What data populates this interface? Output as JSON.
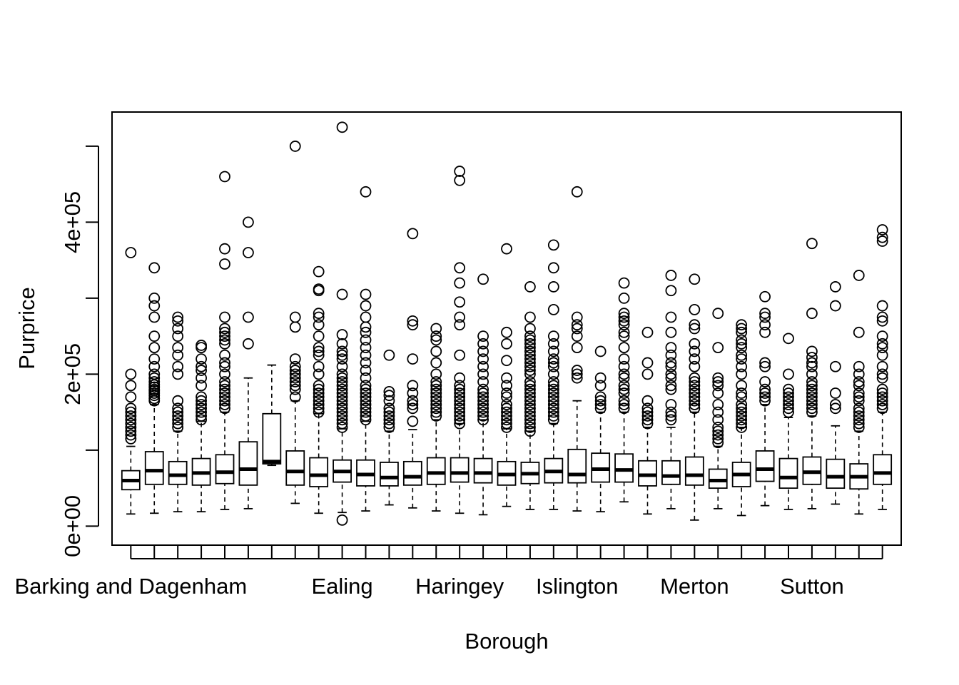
{
  "chart_data": {
    "type": "box",
    "title": "",
    "xlabel": "Borough",
    "ylabel": "Purprice",
    "ylim": [
      -25000,
      545000
    ],
    "yticks": [
      0,
      200000,
      400000
    ],
    "ytick_labels": [
      "0e+00",
      "2e+05",
      "4e+05"
    ],
    "xtick_labels_shown": {
      "1": "Barking and Dagenham",
      "10": "Ealing",
      "15": "Haringey",
      "20": "Islington",
      "25": "Merton",
      "30": "Sutton"
    },
    "boxes": [
      {
        "q1": 48000,
        "median": 60000,
        "q3": 73000,
        "lo": 16000,
        "hi": 105000,
        "out": [
          115000,
          120000,
          125000,
          130000,
          135000,
          140000,
          145000,
          150000,
          155000,
          170000,
          185000,
          200000,
          360000
        ]
      },
      {
        "q1": 55000,
        "median": 73000,
        "q3": 98000,
        "lo": 17000,
        "hi": 160000,
        "out": [
          165000,
          168000,
          172000,
          175000,
          178000,
          180000,
          183000,
          186000,
          190000,
          195000,
          200000,
          210000,
          220000,
          235000,
          250000,
          275000,
          290000,
          300000,
          340000
        ]
      },
      {
        "q1": 55000,
        "median": 67000,
        "q3": 85000,
        "lo": 19000,
        "hi": 125000,
        "out": [
          130000,
          135000,
          140000,
          145000,
          150000,
          155000,
          165000,
          200000,
          210000,
          225000,
          235000,
          250000,
          260000,
          270000,
          275000
        ]
      },
      {
        "q1": 54000,
        "median": 70000,
        "q3": 89000,
        "lo": 19000,
        "hi": 138000,
        "out": [
          140000,
          145000,
          150000,
          155000,
          160000,
          165000,
          170000,
          185000,
          195000,
          205000,
          210000,
          220000,
          235000,
          238000
        ]
      },
      {
        "q1": 56000,
        "median": 71000,
        "q3": 94000,
        "lo": 22000,
        "hi": 150000,
        "out": [
          155000,
          160000,
          165000,
          170000,
          175000,
          180000,
          185000,
          190000,
          200000,
          210000,
          215000,
          225000,
          240000,
          245000,
          250000,
          255000,
          260000,
          275000,
          345000,
          365000,
          460000
        ]
      },
      {
        "q1": 54000,
        "median": 75000,
        "q3": 111000,
        "lo": 23000,
        "hi": 195000,
        "out": [
          240000,
          275000,
          360000,
          400000
        ]
      },
      {
        "q1": 82000,
        "median": 85000,
        "q3": 148000,
        "lo": 80000,
        "hi": 212000,
        "out": []
      },
      {
        "q1": 54000,
        "median": 72000,
        "q3": 99000,
        "lo": 30000,
        "hi": 165000,
        "out": [
          170000,
          180000,
          185000,
          190000,
          195000,
          200000,
          205000,
          210000,
          220000,
          262000,
          275000,
          500000
        ]
      },
      {
        "q1": 52000,
        "median": 67000,
        "q3": 90000,
        "lo": 17000,
        "hi": 148000,
        "out": [
          150000,
          155000,
          160000,
          165000,
          170000,
          175000,
          180000,
          185000,
          200000,
          210000,
          225000,
          230000,
          235000,
          250000,
          265000,
          275000,
          280000,
          310000,
          312000,
          335000
        ]
      },
      {
        "q1": 58000,
        "median": 72000,
        "q3": 87000,
        "lo": 18000,
        "hi": 128000,
        "out": [
          8000,
          130000,
          135000,
          140000,
          145000,
          150000,
          155000,
          160000,
          165000,
          170000,
          175000,
          180000,
          185000,
          190000,
          195000,
          200000,
          210000,
          220000,
          225000,
          230000,
          240000,
          252000,
          305000,
          525000
        ]
      },
      {
        "q1": 53000,
        "median": 68000,
        "q3": 87000,
        "lo": 20000,
        "hi": 138000,
        "out": [
          140000,
          145000,
          150000,
          155000,
          160000,
          165000,
          170000,
          175000,
          180000,
          185000,
          195000,
          205000,
          215000,
          225000,
          235000,
          245000,
          255000,
          262000,
          275000,
          290000,
          305000,
          440000
        ]
      },
      {
        "q1": 53000,
        "median": 64000,
        "q3": 84000,
        "lo": 28000,
        "hi": 125000,
        "out": [
          130000,
          135000,
          140000,
          145000,
          150000,
          155000,
          165000,
          172000,
          177000,
          225000
        ]
      },
      {
        "q1": 54000,
        "median": 65000,
        "q3": 85000,
        "lo": 24000,
        "hi": 127000,
        "out": [
          138000,
          155000,
          160000,
          165000,
          175000,
          185000,
          220000,
          265000,
          270000,
          385000
        ]
      },
      {
        "q1": 55000,
        "median": 70000,
        "q3": 90000,
        "lo": 20000,
        "hi": 140000,
        "out": [
          145000,
          150000,
          155000,
          160000,
          165000,
          170000,
          175000,
          180000,
          185000,
          190000,
          200000,
          215000,
          230000,
          245000,
          250000,
          260000
        ]
      },
      {
        "q1": 58000,
        "median": 70000,
        "q3": 90000,
        "lo": 17000,
        "hi": 135000,
        "out": [
          135000,
          140000,
          145000,
          150000,
          155000,
          160000,
          165000,
          170000,
          175000,
          180000,
          185000,
          195000,
          225000,
          265000,
          275000,
          295000,
          320000,
          340000,
          455000,
          467000
        ]
      },
      {
        "q1": 57000,
        "median": 70000,
        "q3": 89000,
        "lo": 15000,
        "hi": 140000,
        "out": [
          140000,
          145000,
          150000,
          155000,
          160000,
          165000,
          170000,
          175000,
          180000,
          190000,
          200000,
          210000,
          220000,
          230000,
          240000,
          250000,
          325000
        ]
      },
      {
        "q1": 54000,
        "median": 68000,
        "q3": 85000,
        "lo": 26000,
        "hi": 128000,
        "out": [
          130000,
          135000,
          140000,
          145000,
          150000,
          155000,
          160000,
          170000,
          175000,
          185000,
          195000,
          218000,
          240000,
          255000,
          365000
        ]
      },
      {
        "q1": 56000,
        "median": 69000,
        "q3": 84000,
        "lo": 22000,
        "hi": 125000,
        "out": [
          125000,
          130000,
          135000,
          140000,
          145000,
          150000,
          155000,
          160000,
          165000,
          170000,
          175000,
          180000,
          185000,
          190000,
          200000,
          205000,
          210000,
          215000,
          220000,
          225000,
          230000,
          235000,
          240000,
          245000,
          250000,
          260000,
          275000,
          315000
        ]
      },
      {
        "q1": 57000,
        "median": 72000,
        "q3": 89000,
        "lo": 22000,
        "hi": 135000,
        "out": [
          140000,
          145000,
          150000,
          155000,
          160000,
          165000,
          170000,
          175000,
          180000,
          185000,
          190000,
          200000,
          210000,
          215000,
          220000,
          230000,
          240000,
          250000,
          285000,
          315000,
          340000,
          370000
        ]
      },
      {
        "q1": 57000,
        "median": 68000,
        "q3": 101000,
        "lo": 20000,
        "hi": 165000,
        "out": [
          195000,
          200000,
          205000,
          235000,
          250000,
          260000,
          265000,
          275000,
          440000
        ]
      },
      {
        "q1": 58000,
        "median": 75000,
        "q3": 96000,
        "lo": 19000,
        "hi": 150000,
        "out": [
          155000,
          160000,
          165000,
          170000,
          185000,
          195000,
          230000
        ]
      },
      {
        "q1": 58000,
        "median": 74000,
        "q3": 95000,
        "lo": 32000,
        "hi": 150000,
        "out": [
          155000,
          160000,
          165000,
          175000,
          180000,
          185000,
          195000,
          200000,
          210000,
          220000,
          235000,
          250000,
          255000,
          265000,
          270000,
          275000,
          280000,
          300000,
          320000
        ]
      },
      {
        "q1": 53000,
        "median": 67000,
        "q3": 86000,
        "lo": 16000,
        "hi": 130000,
        "out": [
          135000,
          140000,
          145000,
          150000,
          155000,
          165000,
          200000,
          215000,
          255000
        ]
      },
      {
        "q1": 55000,
        "median": 66000,
        "q3": 86000,
        "lo": 23000,
        "hi": 130000,
        "out": [
          140000,
          145000,
          150000,
          160000,
          180000,
          185000,
          195000,
          200000,
          210000,
          215000,
          225000,
          235000,
          255000,
          275000,
          310000,
          330000
        ]
      },
      {
        "q1": 54000,
        "median": 67000,
        "q3": 91000,
        "lo": 8000,
        "hi": 150000,
        "out": [
          155000,
          160000,
          165000,
          170000,
          175000,
          180000,
          185000,
          190000,
          195000,
          210000,
          220000,
          230000,
          240000,
          260000,
          265000,
          285000,
          325000
        ]
      },
      {
        "q1": 50000,
        "median": 60000,
        "q3": 75000,
        "lo": 23000,
        "hi": 105000,
        "out": [
          110000,
          115000,
          120000,
          125000,
          130000,
          140000,
          150000,
          160000,
          175000,
          185000,
          190000,
          195000,
          235000,
          280000
        ]
      },
      {
        "q1": 52000,
        "median": 68000,
        "q3": 84000,
        "lo": 14000,
        "hi": 130000,
        "out": [
          130000,
          135000,
          140000,
          145000,
          150000,
          155000,
          160000,
          170000,
          175000,
          185000,
          200000,
          210000,
          220000,
          225000,
          235000,
          240000,
          245000,
          255000,
          260000,
          265000
        ]
      },
      {
        "q1": 59000,
        "median": 75000,
        "q3": 99000,
        "lo": 27000,
        "hi": 160000,
        "out": [
          165000,
          170000,
          175000,
          180000,
          190000,
          210000,
          215000,
          255000,
          265000,
          275000,
          280000,
          302000
        ]
      },
      {
        "q1": 50000,
        "median": 64000,
        "q3": 89000,
        "lo": 22000,
        "hi": 143000,
        "out": [
          150000,
          155000,
          160000,
          165000,
          170000,
          175000,
          180000,
          200000,
          247000
        ]
      },
      {
        "q1": 55000,
        "median": 71000,
        "q3": 91000,
        "lo": 23000,
        "hi": 145000,
        "out": [
          150000,
          155000,
          160000,
          165000,
          170000,
          175000,
          180000,
          185000,
          190000,
          200000,
          210000,
          215000,
          222000,
          230000,
          280000,
          372000
        ]
      },
      {
        "q1": 50000,
        "median": 65000,
        "q3": 88000,
        "lo": 29000,
        "hi": 132000,
        "out": [
          155000,
          160000,
          175000,
          210000,
          290000,
          315000
        ]
      },
      {
        "q1": 49000,
        "median": 65000,
        "q3": 82000,
        "lo": 16000,
        "hi": 125000,
        "out": [
          130000,
          135000,
          140000,
          145000,
          150000,
          155000,
          165000,
          170000,
          175000,
          185000,
          190000,
          200000,
          210000,
          255000,
          330000
        ]
      },
      {
        "q1": 55000,
        "median": 70000,
        "q3": 94000,
        "lo": 22000,
        "hi": 150000,
        "out": [
          155000,
          160000,
          165000,
          170000,
          175000,
          180000,
          195000,
          200000,
          210000,
          225000,
          235000,
          240000,
          250000,
          270000,
          275000,
          290000,
          375000,
          380000,
          390000
        ]
      }
    ]
  }
}
